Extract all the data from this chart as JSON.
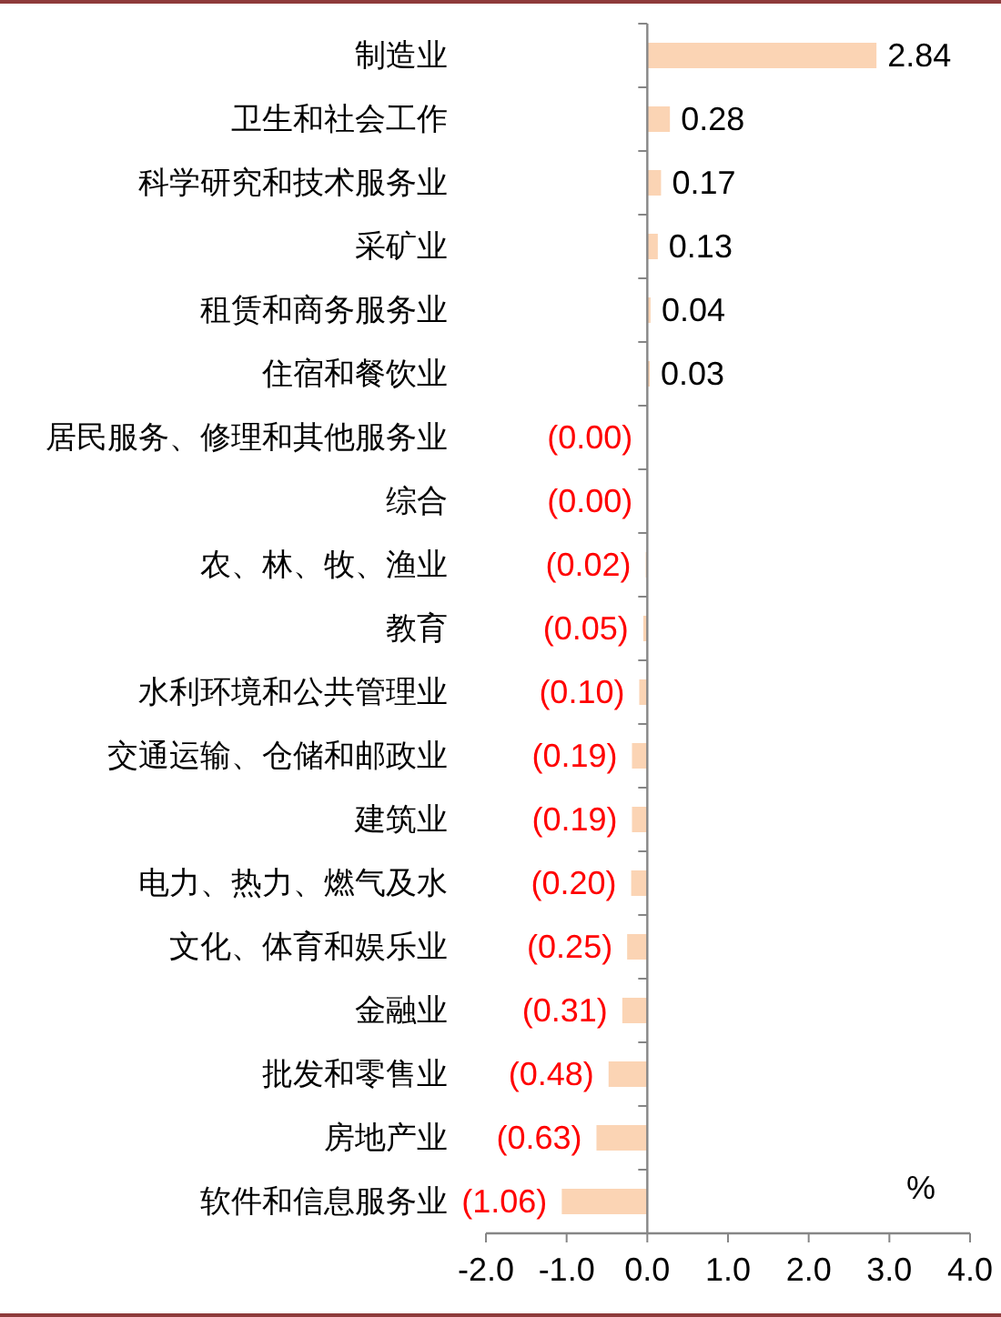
{
  "chart_data": {
    "type": "bar",
    "orientation": "horizontal",
    "categories": [
      "制造业",
      "卫生和社会工作",
      "科学研究和技术服务业",
      "采矿业",
      "租赁和商务服务业",
      "住宿和餐饮业",
      "居民服务、修理和其他服务业",
      "综合",
      "农、林、牧、渔业",
      "教育",
      "水利环境和公共管理业",
      "交通运输、仓储和邮政业",
      "建筑业",
      "电力、热力、燃气及水",
      "文化、体育和娱乐业",
      "金融业",
      "批发和零售业",
      "房地产业",
      "软件和信息服务业"
    ],
    "values": [
      2.84,
      0.28,
      0.17,
      0.13,
      0.04,
      0.03,
      -0.0,
      -0.0,
      -0.02,
      -0.05,
      -0.1,
      -0.19,
      -0.19,
      -0.2,
      -0.25,
      -0.31,
      -0.48,
      -0.63,
      -1.06
    ],
    "value_labels": [
      "2.84",
      "0.28",
      "0.17",
      "0.13",
      "0.04",
      "0.03",
      "(0.00)",
      "(0.00)",
      "(0.02)",
      "(0.05)",
      "(0.10)",
      "(0.19)",
      "(0.19)",
      "(0.20)",
      "(0.25)",
      "(0.31)",
      "(0.48)",
      "(0.63)",
      "(1.06)"
    ],
    "color": "#fbd4b4",
    "xlim": [
      -2,
      4
    ],
    "xticks": [
      {
        "value": -2,
        "label": "-2.0"
      },
      {
        "value": -1,
        "label": "-1.0"
      },
      {
        "value": 0,
        "label": "0.0"
      },
      {
        "value": 1,
        "label": "1.0"
      },
      {
        "value": 2,
        "label": "2.0"
      },
      {
        "value": 3,
        "label": "3.0"
      },
      {
        "value": 4,
        "label": "4.0"
      }
    ],
    "xlabel": "%"
  }
}
